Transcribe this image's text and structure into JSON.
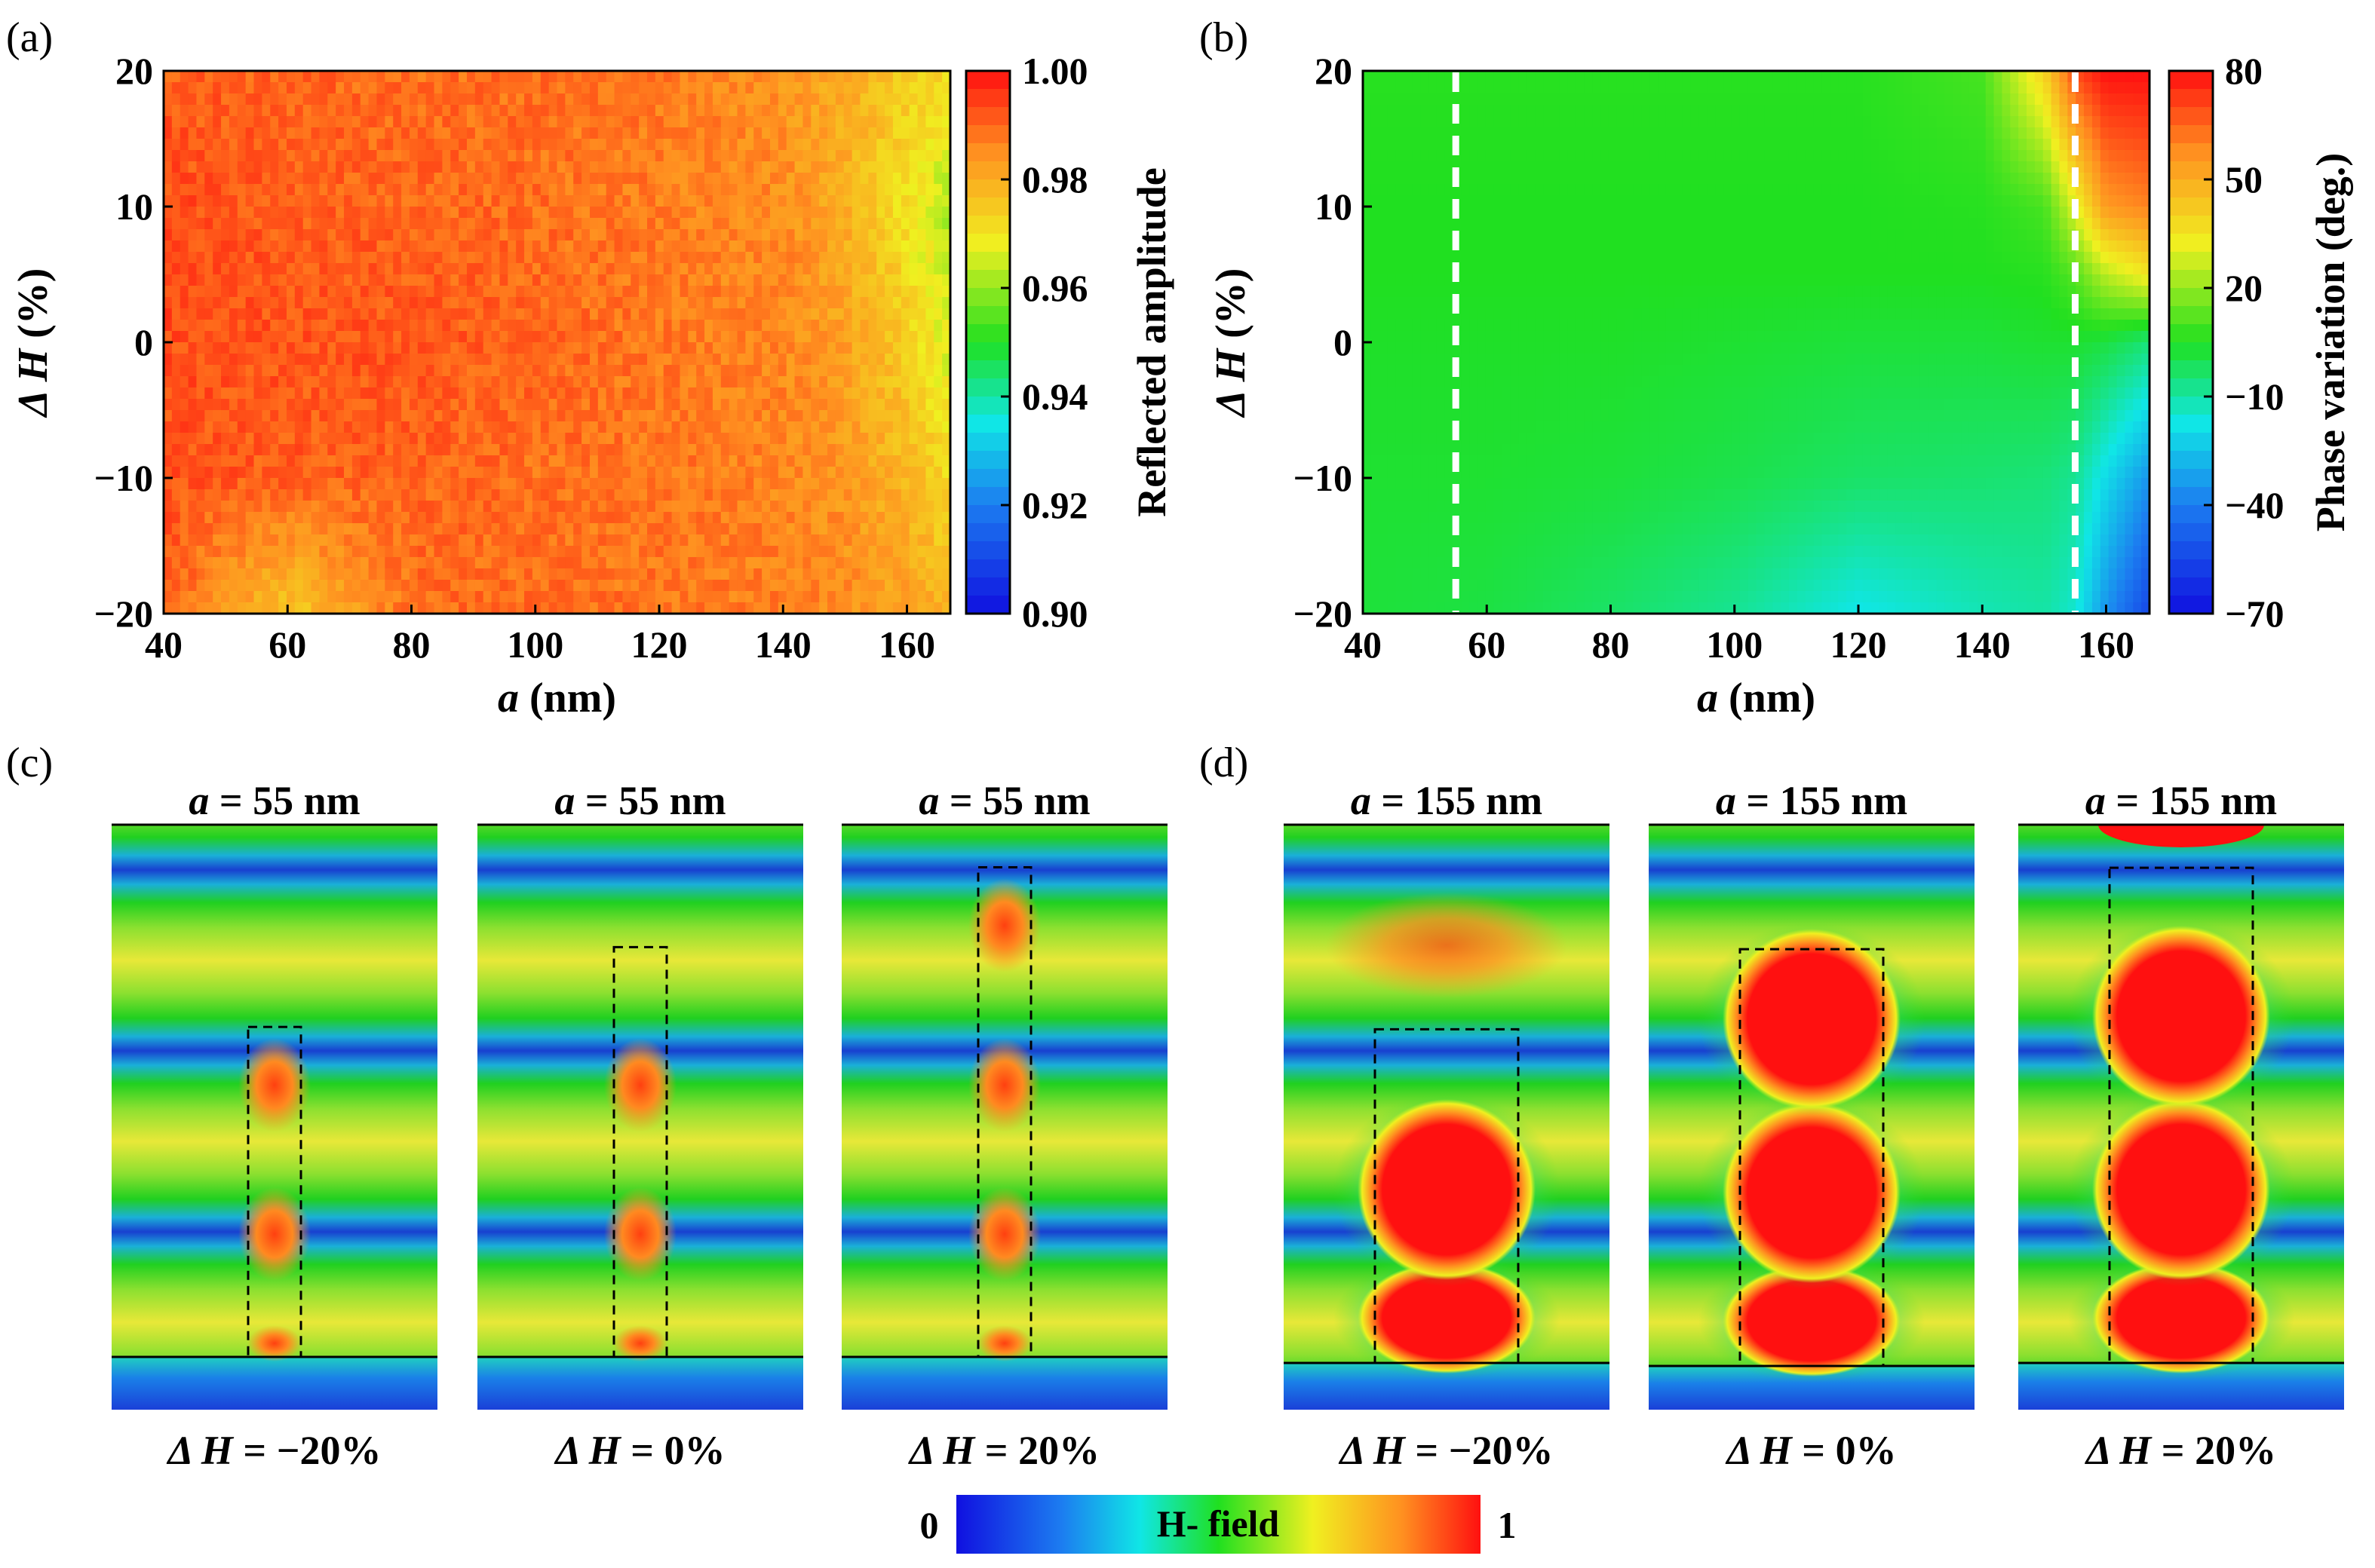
{
  "chart_data": [
    {
      "panel": "(a)",
      "type": "heatmap",
      "title": "",
      "xlabel": "a (nm)",
      "xlabel_var": "a",
      "xlabel_unit": " (nm)",
      "ylabel": "ΔH (%)",
      "ylabel_var": "Δ H",
      "ylabel_unit": " (%)",
      "xlim": [
        40,
        167
      ],
      "ylim": [
        -20,
        20
      ],
      "xticks": [
        40,
        60,
        80,
        100,
        120,
        140,
        160
      ],
      "yticks": [
        20,
        10,
        0,
        -10,
        -20
      ],
      "ytick_labels": [
        "20",
        "10",
        "0",
        "−10",
        "−20"
      ],
      "colorbar": {
        "label": "Reflected amplitude",
        "range": [
          0.9,
          1.0
        ],
        "ticks": [
          "1.00",
          "0.98",
          "0.96",
          "0.94",
          "0.92",
          "0.90"
        ]
      },
      "x": [
        40,
        60,
        80,
        100,
        120,
        140,
        150,
        160,
        167
      ],
      "y": [
        20,
        10,
        0,
        -10,
        -20
      ],
      "z": [
        [
          0.991,
          0.99,
          0.989,
          0.989,
          0.988,
          0.984,
          0.98,
          0.975,
          0.972
        ],
        [
          0.993,
          0.991,
          0.99,
          0.989,
          0.987,
          0.985,
          0.98,
          0.97,
          0.962
        ],
        [
          0.993,
          0.992,
          0.992,
          0.99,
          0.988,
          0.986,
          0.982,
          0.974,
          0.966
        ],
        [
          0.992,
          0.991,
          0.99,
          0.989,
          0.988,
          0.986,
          0.984,
          0.978,
          0.972
        ],
        [
          0.991,
          0.975,
          0.989,
          0.989,
          0.988,
          0.987,
          0.985,
          0.982,
          0.978
        ]
      ]
    },
    {
      "panel": "(b)",
      "type": "heatmap",
      "title": "",
      "xlabel": "a (nm)",
      "xlabel_var": "a",
      "xlabel_unit": " (nm)",
      "ylabel": "ΔH (%)",
      "ylabel_var": "Δ H",
      "ylabel_unit": " (%)",
      "xlim": [
        40,
        167
      ],
      "ylim": [
        -20,
        20
      ],
      "xticks": [
        40,
        60,
        80,
        100,
        120,
        140,
        160
      ],
      "yticks": [
        20,
        10,
        0,
        -10,
        -20
      ],
      "ytick_labels": [
        "20",
        "10",
        "0",
        "−10",
        "−20"
      ],
      "colorbar": {
        "label": "Phase variation (deg.)",
        "range": [
          -70,
          80
        ],
        "ticks": [
          "80",
          "50",
          "20",
          "−10",
          "−40",
          "−70"
        ]
      },
      "reference_lines_x": [
        55,
        155
      ],
      "x": [
        40,
        60,
        80,
        100,
        120,
        140,
        150,
        155,
        160,
        167
      ],
      "y": [
        20,
        10,
        5,
        0,
        -10,
        -20
      ],
      "z": [
        [
          6,
          6,
          6,
          6,
          6,
          10,
          40,
          70,
          80,
          80
        ],
        [
          5,
          5,
          5,
          5,
          5,
          6,
          10,
          30,
          55,
          60
        ],
        [
          5,
          5,
          5,
          5,
          5,
          5,
          6,
          12,
          25,
          35
        ],
        [
          4,
          4,
          4,
          3,
          2,
          2,
          3,
          3,
          1,
          -5
        ],
        [
          3,
          3,
          2,
          0,
          -3,
          -4,
          -5,
          -8,
          -20,
          -35
        ],
        [
          2,
          1,
          -3,
          -8,
          -18,
          -12,
          -10,
          -15,
          -35,
          -55
        ]
      ]
    }
  ],
  "panels": {
    "a_label": "(a)",
    "b_label": "(b)",
    "c_label": "(c)",
    "d_label": "(d)"
  },
  "field_maps": {
    "c": [
      {
        "title_var": "a",
        "title_value": " = 55 nm",
        "delta_h_var": "Δ H",
        "delta_h_value": " = −20%",
        "pillar_height_fraction": 0.62,
        "resonant": false
      },
      {
        "title_var": "a",
        "title_value": " = 55 nm",
        "delta_h_var": "Δ H",
        "delta_h_value": " = 0%",
        "pillar_height_fraction": 0.77,
        "resonant": false
      },
      {
        "title_var": "a",
        "title_value": " = 55 nm",
        "delta_h_var": "Δ H",
        "delta_h_value": " = 20%",
        "pillar_height_fraction": 0.92,
        "resonant": false
      }
    ],
    "d": [
      {
        "title_var": "a",
        "title_value": " = 155 nm",
        "delta_h_var": "Δ H",
        "delta_h_value": " = −20%",
        "pillar_height_fraction": 0.62,
        "resonant": true
      },
      {
        "title_var": "a",
        "title_value": " = 155 nm",
        "delta_h_var": "Δ H",
        "delta_h_value": " = 0%",
        "pillar_height_fraction": 0.77,
        "resonant": true
      },
      {
        "title_var": "a",
        "title_value": " = 155 nm",
        "delta_h_var": "Δ H",
        "delta_h_value": " = 20%",
        "pillar_height_fraction": 0.92,
        "resonant": true
      }
    ]
  },
  "field_colorbar": {
    "label": "H- field",
    "min_label": "0",
    "max_label": "1",
    "range": [
      0,
      1
    ]
  }
}
